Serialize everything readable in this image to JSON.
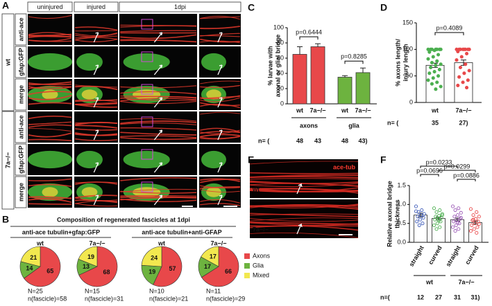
{
  "panel_labels": [
    "A",
    "B",
    "C",
    "D",
    "E",
    "F"
  ],
  "panel_a": {
    "columns": [
      "uninjured",
      "injured",
      "1dpi"
    ],
    "groups": [
      "wt",
      "7a−/−"
    ],
    "rows": [
      "anti-ace",
      "gfap:GFP",
      "merge"
    ]
  },
  "panel_b": {
    "title": "Composition of regenerated fascicles at 1dpi",
    "subtitles": [
      "anti-ace tubulin+gfap:GFP",
      "anti-ace tubulin+anti-GFAP"
    ],
    "legend": [
      "Axons",
      "Glia",
      "Mixed"
    ]
  },
  "panel_e": {
    "labels": [
      "wt",
      "7a−/−"
    ],
    "stain": "ace-tub"
  },
  "chart_data": [
    {
      "type": "pie",
      "title": "wt",
      "values": [
        65,
        14,
        21
      ],
      "colors": [
        "#e8484a",
        "#6db33f",
        "#f2e84f"
      ],
      "n_label": "N=25",
      "fascicle_label": "n(fascicle)=58"
    },
    {
      "type": "pie",
      "title": "7a−/−",
      "values": [
        68,
        13,
        19
      ],
      "colors": [
        "#e8484a",
        "#6db33f",
        "#f2e84f"
      ],
      "n_label": "N=15",
      "fascicle_label": "n(fascicle)=31"
    },
    {
      "type": "pie",
      "title": "wt",
      "values": [
        57,
        19,
        24
      ],
      "colors": [
        "#e8484a",
        "#6db33f",
        "#f2e84f"
      ],
      "n_label": "N=10",
      "fascicle_label": "n(fascicle)=21"
    },
    {
      "type": "pie",
      "title": "7a−/−",
      "values": [
        66,
        17,
        17
      ],
      "colors": [
        "#e8484a",
        "#6db33f",
        "#f2e84f"
      ],
      "n_label": "N=11",
      "fascicle_label": "n(fascicle)=29"
    },
    {
      "type": "bar",
      "ylabel": [
        "% larvae with",
        "axonal or glial bridge"
      ],
      "categories": [
        "wt",
        "7a−/−",
        "wt",
        "7a−/−"
      ],
      "groups": [
        "axons",
        "glia"
      ],
      "values": [
        65,
        75,
        35,
        41
      ],
      "errors": [
        10,
        4,
        2,
        6
      ],
      "colors": [
        "#e8484a",
        "#e8484a",
        "#6db33f",
        "#6db33f"
      ],
      "ylim": [
        0,
        100
      ],
      "yticks": [
        0,
        20,
        40,
        60,
        80,
        100
      ],
      "pvalues": [
        "p=0.6444",
        "p=0.8285"
      ],
      "n_row": [
        "n= (",
        "48",
        "43",
        "48",
        "43)"
      ]
    },
    {
      "type": "dotbar",
      "ylabel": [
        "% axons length/",
        "injury length"
      ],
      "categories": [
        "wt",
        "7a−/−"
      ],
      "values": [
        70,
        75
      ],
      "errors": [
        4,
        5
      ],
      "colors": [
        "#4caf50",
        "#e8484a"
      ],
      "points": [
        [
          100,
          100,
          100,
          100,
          100,
          100,
          100,
          98,
          95,
          90,
          86,
          82,
          78,
          75,
          72,
          70,
          66,
          62,
          58,
          55,
          50,
          46,
          42,
          38,
          35,
          30,
          25
        ],
        [
          100,
          100,
          100,
          100,
          100,
          100,
          100,
          100,
          96,
          92,
          86,
          80,
          72,
          66,
          60,
          55,
          48,
          42,
          38,
          32,
          28
        ]
      ],
      "ylim": [
        0,
        150
      ],
      "yticks": [
        0,
        50,
        100,
        150
      ],
      "pvalues": [
        "p=0.4089"
      ],
      "n_row": [
        "n= (",
        "35",
        "27)"
      ]
    },
    {
      "type": "dotbar",
      "ylabel": [
        "Relative axonal bridge",
        "thickness"
      ],
      "categories": [
        "straight",
        "curved",
        "straight",
        "curved"
      ],
      "groups": [
        "wt",
        "7a−/−"
      ],
      "values": [
        0.72,
        0.63,
        0.6,
        0.52
      ],
      "errors": [
        0.05,
        0.04,
        0.04,
        0.04
      ],
      "colors": [
        "#3d5ab8",
        "#4caf50",
        "#9b59b6",
        "#e8484a"
      ],
      "points": [
        [
          0.95,
          0.85,
          0.8,
          0.75,
          0.72,
          0.68,
          0.65,
          0.6,
          0.55,
          0.5,
          0.45,
          0.82
        ],
        [
          0.9,
          0.85,
          0.8,
          0.75,
          0.7,
          0.68,
          0.65,
          0.62,
          0.6,
          0.55,
          0.5,
          0.45,
          0.4,
          0.35,
          0.72,
          0.58
        ],
        [
          0.95,
          0.9,
          0.85,
          0.78,
          0.72,
          0.68,
          0.62,
          0.58,
          0.55,
          0.5,
          0.45,
          0.4,
          0.35,
          0.3,
          0.65,
          0.52
        ],
        [
          0.88,
          0.8,
          0.72,
          0.68,
          0.62,
          0.58,
          0.55,
          0.5,
          0.45,
          0.4,
          0.35,
          0.3,
          0.25,
          0.6,
          0.48
        ]
      ],
      "ylim": [
        0,
        1.5
      ],
      "yticks": [
        {
          "value": 0,
          "label": "0.0"
        },
        0.5,
        {
          "value": 1,
          "label": "1.0"
        },
        1.5
      ],
      "pvalues": [
        "p=0.0233",
        "p=0.0696",
        "p=0.0299",
        "p=0.0886"
      ],
      "n_row": [
        "n=(",
        "12",
        "27",
        "31",
        "31)"
      ]
    }
  ]
}
